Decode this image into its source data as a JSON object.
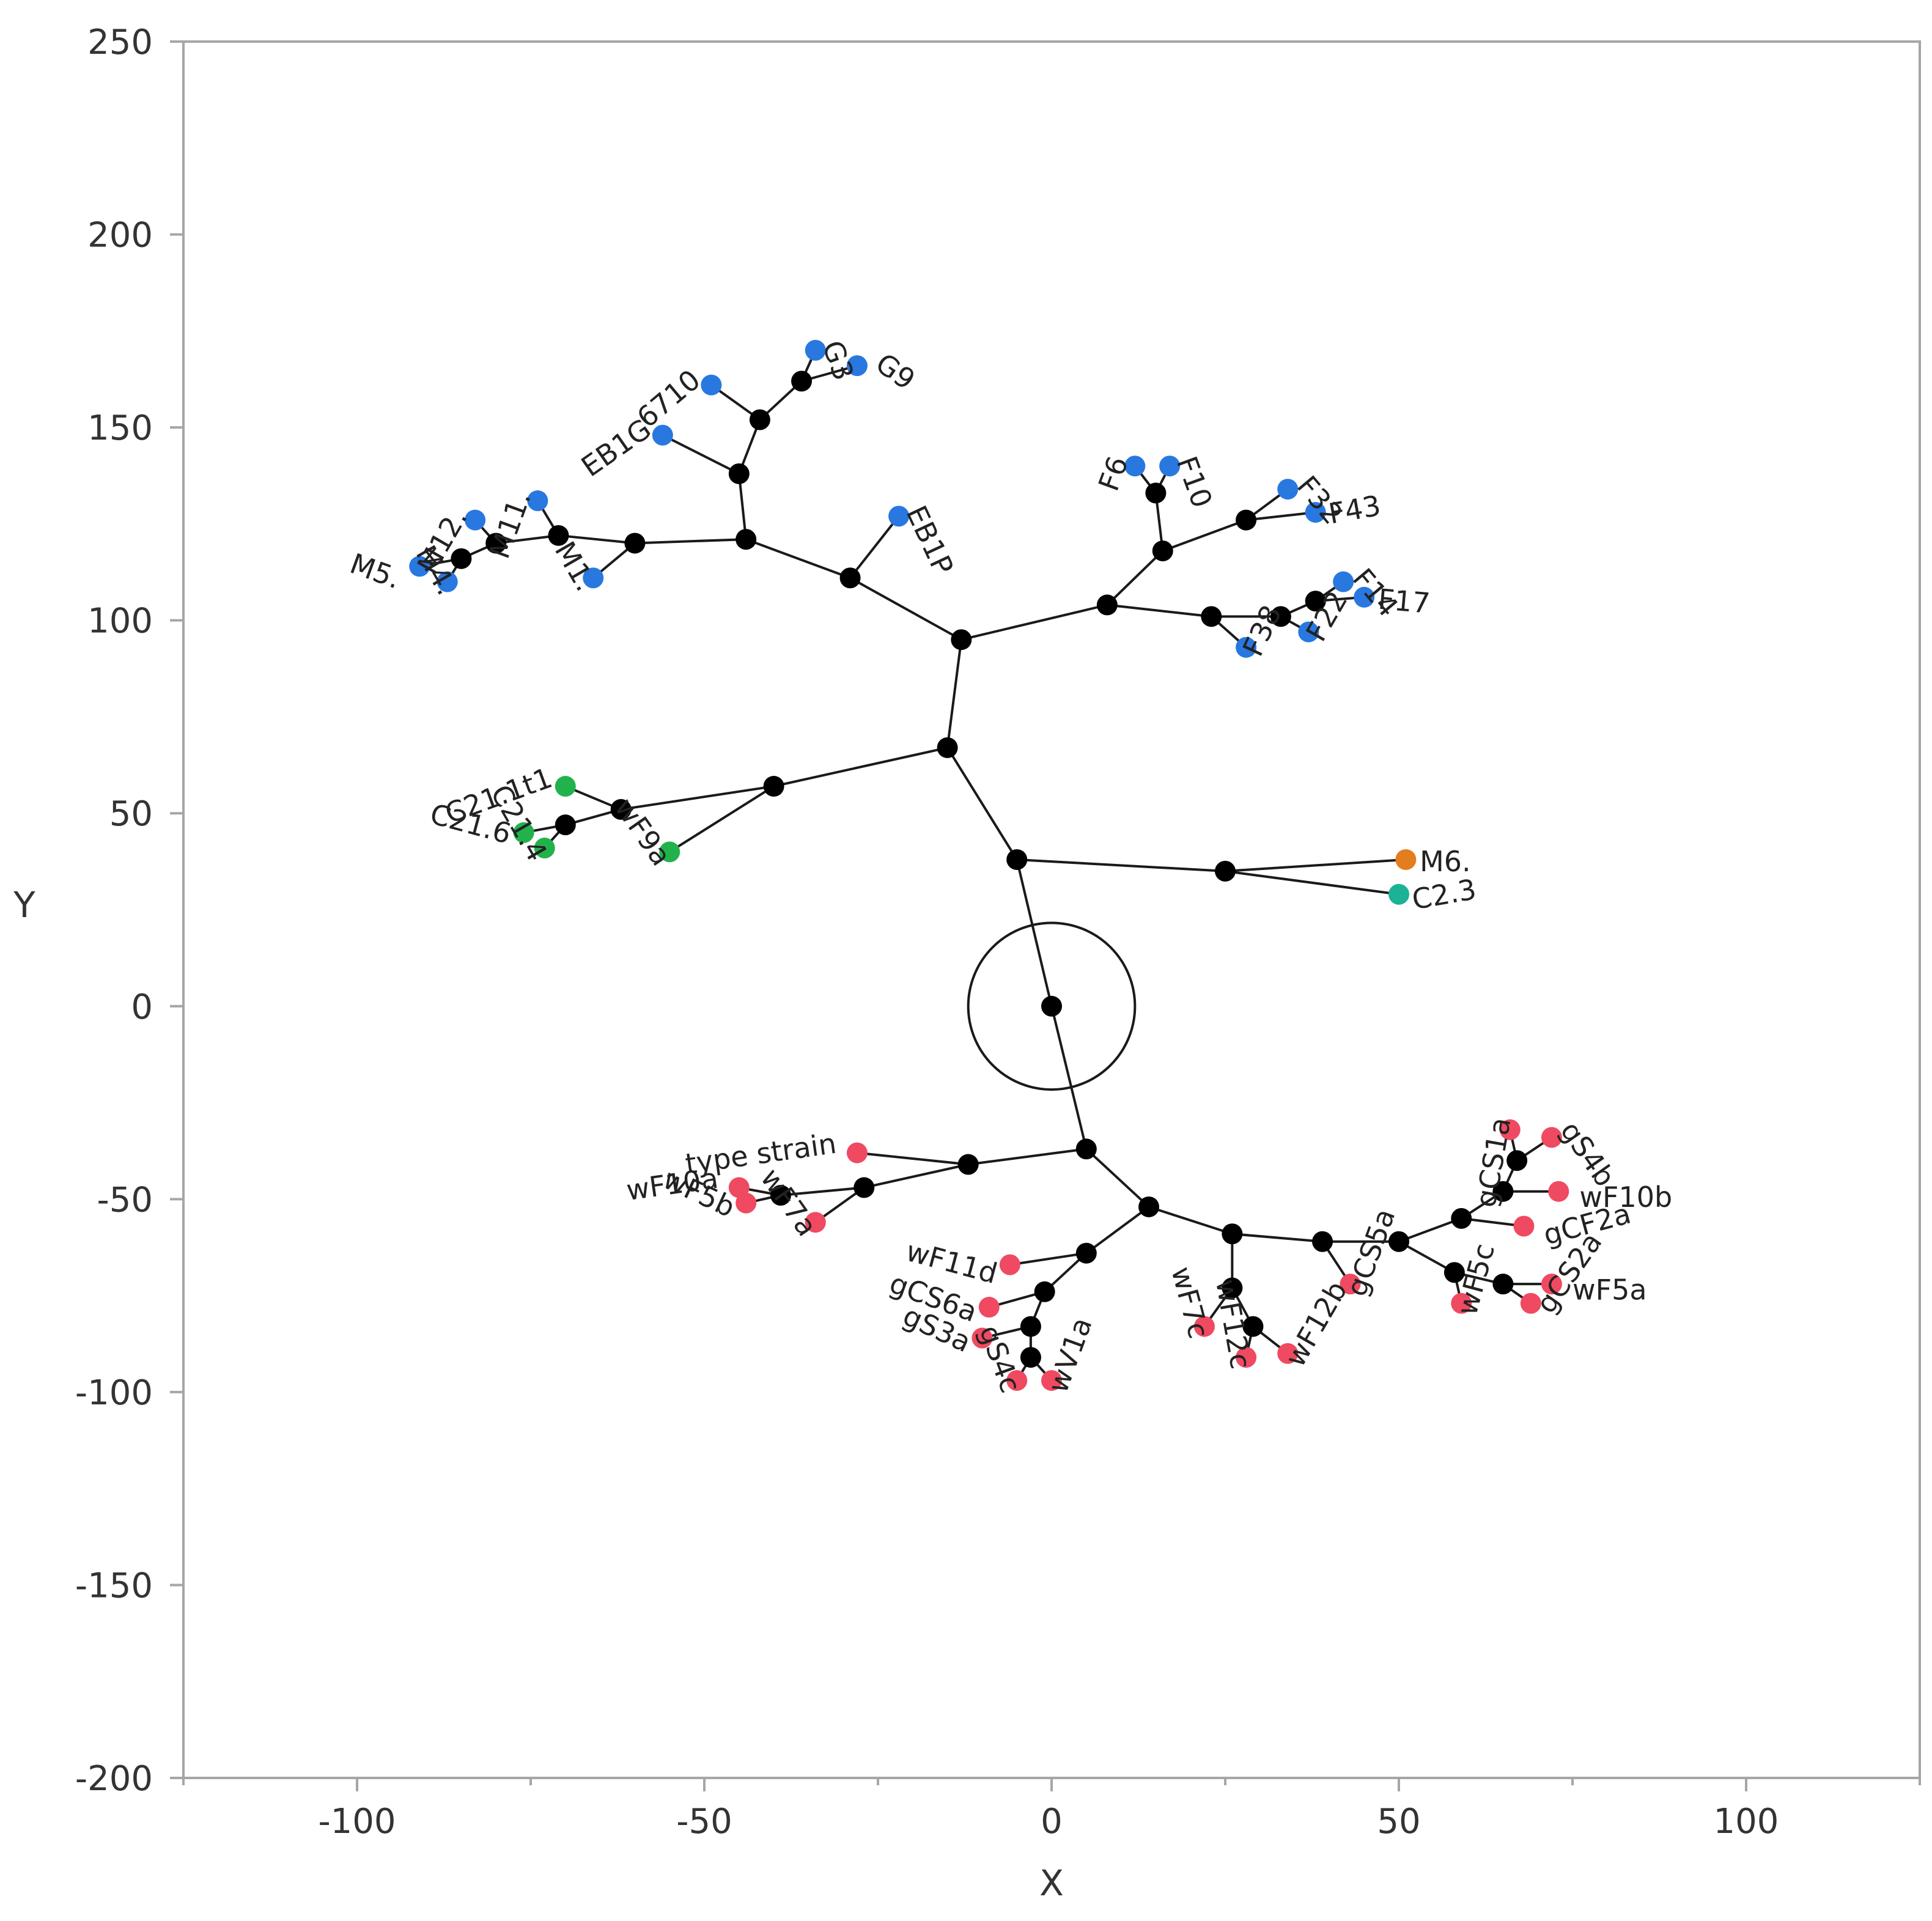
{
  "chart_data": {
    "type": "scatter",
    "title": "",
    "xlabel": "X",
    "ylabel": "Y",
    "xlim": [
      -125,
      125
    ],
    "ylim": [
      -200,
      250
    ],
    "xticks": [
      -100,
      -50,
      0,
      50,
      100
    ],
    "yticks": [
      -200,
      -150,
      -100,
      -50,
      0,
      50,
      100,
      150,
      200,
      250
    ],
    "xtick_labels": [
      "-100",
      "-50",
      "0",
      "50",
      "100"
    ],
    "ytick_labels": [
      "-200",
      "-150",
      "-100",
      "-50",
      "0",
      "50",
      "100",
      "150",
      "200",
      "250"
    ],
    "grid": false,
    "legend": "none",
    "root_marker": {
      "x": 0,
      "y": 0,
      "radius": 12
    },
    "colors": {
      "internal": "#000000",
      "blue": "#2878e0",
      "green": "#22b24c",
      "orange": "#e37d1e",
      "teal": "#1bb296",
      "red": "#ef4a61",
      "edge": "#1a1a1a",
      "axis": "#a6a6a6"
    },
    "nodes": [
      {
        "id": "n0",
        "x": 0,
        "y": 0,
        "color": "internal"
      },
      {
        "id": "n1",
        "x": -5,
        "y": 38,
        "color": "internal"
      },
      {
        "id": "n2",
        "x": -15,
        "y": 67,
        "color": "internal"
      },
      {
        "id": "n3",
        "x": -13,
        "y": 95,
        "color": "internal"
      },
      {
        "id": "n4",
        "x": -29,
        "y": 111,
        "color": "internal"
      },
      {
        "id": "n5",
        "x": -44,
        "y": 121,
        "color": "internal"
      },
      {
        "id": "n6",
        "x": -60,
        "y": 120,
        "color": "internal"
      },
      {
        "id": "n7",
        "x": -71,
        "y": 122,
        "color": "internal"
      },
      {
        "id": "n8",
        "x": -80,
        "y": 120,
        "color": "internal"
      },
      {
        "id": "n9",
        "x": -85,
        "y": 116,
        "color": "internal"
      },
      {
        "id": "n10",
        "x": -45,
        "y": 138,
        "color": "internal"
      },
      {
        "id": "n11",
        "x": -42,
        "y": 152,
        "color": "internal"
      },
      {
        "id": "n12",
        "x": -36,
        "y": 162,
        "color": "internal"
      },
      {
        "id": "n13",
        "x": 8,
        "y": 104,
        "color": "internal"
      },
      {
        "id": "n14",
        "x": 16,
        "y": 118,
        "color": "internal"
      },
      {
        "id": "n15",
        "x": 15,
        "y": 133,
        "color": "internal"
      },
      {
        "id": "n16",
        "x": 28,
        "y": 126,
        "color": "internal"
      },
      {
        "id": "n17",
        "x": 23,
        "y": 101,
        "color": "internal"
      },
      {
        "id": "n18",
        "x": 33,
        "y": 101,
        "color": "internal"
      },
      {
        "id": "n19",
        "x": 38,
        "y": 105,
        "color": "internal"
      },
      {
        "id": "n20",
        "x": -40,
        "y": 57,
        "color": "internal"
      },
      {
        "id": "n21",
        "x": -62,
        "y": 51,
        "color": "internal"
      },
      {
        "id": "n22",
        "x": -70,
        "y": 47,
        "color": "internal"
      },
      {
        "id": "n23",
        "x": 25,
        "y": 35,
        "color": "internal"
      },
      {
        "id": "n24",
        "x": 5,
        "y": -37,
        "color": "internal"
      },
      {
        "id": "n25",
        "x": -12,
        "y": -41,
        "color": "internal"
      },
      {
        "id": "n26",
        "x": -27,
        "y": -47,
        "color": "internal"
      },
      {
        "id": "n27",
        "x": -39,
        "y": -49,
        "color": "internal"
      },
      {
        "id": "n28",
        "x": 14,
        "y": -52,
        "color": "internal"
      },
      {
        "id": "n29",
        "x": 5,
        "y": -64,
        "color": "internal"
      },
      {
        "id": "n30",
        "x": -1,
        "y": -74,
        "color": "internal"
      },
      {
        "id": "n31",
        "x": -3,
        "y": -83,
        "color": "internal"
      },
      {
        "id": "n32",
        "x": -3,
        "y": -91,
        "color": "internal"
      },
      {
        "id": "n33",
        "x": 26,
        "y": -59,
        "color": "internal"
      },
      {
        "id": "n34",
        "x": 26,
        "y": -73,
        "color": "internal"
      },
      {
        "id": "n35",
        "x": 29,
        "y": -83,
        "color": "internal"
      },
      {
        "id": "n36",
        "x": 39,
        "y": -61,
        "color": "internal"
      },
      {
        "id": "n37",
        "x": 50,
        "y": -61,
        "color": "internal"
      },
      {
        "id": "n38",
        "x": 59,
        "y": -55,
        "color": "internal"
      },
      {
        "id": "n39",
        "x": 65,
        "y": -48,
        "color": "internal"
      },
      {
        "id": "n40",
        "x": 67,
        "y": -40,
        "color": "internal"
      },
      {
        "id": "n41",
        "x": 58,
        "y": -69,
        "color": "internal"
      },
      {
        "id": "n42",
        "x": 65,
        "y": -72,
        "color": "internal"
      },
      {
        "id": "M5",
        "x": -91,
        "y": 114,
        "color": "blue",
        "label": "M5.",
        "lx": -94,
        "ly": 110,
        "angle": -20,
        "anchor": "end"
      },
      {
        "id": "M4",
        "x": -87,
        "y": 110,
        "color": "blue",
        "label": "M4.",
        "lx": -87,
        "ly": 107,
        "angle": -60,
        "anchor": "end"
      },
      {
        "id": "M12",
        "x": -83,
        "y": 126,
        "color": "blue",
        "label": "M12.",
        "lx": -85,
        "ly": 128,
        "angle": 60,
        "anchor": "end"
      },
      {
        "id": "M11",
        "x": -74,
        "y": 131,
        "color": "blue",
        "label": "M11.",
        "lx": -76,
        "ly": 133,
        "angle": 70,
        "anchor": "end"
      },
      {
        "id": "M1",
        "x": -66,
        "y": 111,
        "color": "blue",
        "label": "M1.",
        "lx": -67,
        "ly": 108,
        "angle": -60,
        "anchor": "end"
      },
      {
        "id": "EB1G",
        "x": -56,
        "y": 148,
        "color": "blue",
        "label": "EB1G",
        "lx": -58,
        "ly": 150,
        "angle": 35,
        "anchor": "end"
      },
      {
        "id": "6710",
        "x": -49,
        "y": 161,
        "color": "blue",
        "label": "6710",
        "lx": -51,
        "ly": 163,
        "angle": 40,
        "anchor": "end"
      },
      {
        "id": "G3",
        "x": -34,
        "y": 170,
        "color": "blue",
        "label": "G3",
        "lx": -32,
        "ly": 172,
        "angle": -70,
        "anchor": "start"
      },
      {
        "id": "G9",
        "x": -28,
        "y": 166,
        "color": "blue",
        "label": "G9",
        "lx": -25,
        "ly": 167,
        "angle": -35,
        "anchor": "start"
      },
      {
        "id": "EB1P",
        "x": -22,
        "y": 127,
        "color": "blue",
        "label": "EB1P",
        "lx": -20,
        "ly": 129,
        "angle": -65,
        "anchor": "start"
      },
      {
        "id": "F6",
        "x": 12,
        "y": 140,
        "color": "blue",
        "label": "F6",
        "lx": 10,
        "ly": 142,
        "angle": 70,
        "anchor": "end"
      },
      {
        "id": "F10",
        "x": 17,
        "y": 140,
        "color": "blue",
        "label": "F10",
        "lx": 19,
        "ly": 142,
        "angle": -70,
        "anchor": "start"
      },
      {
        "id": "F32",
        "x": 34,
        "y": 134,
        "color": "blue",
        "label": "F32",
        "lx": 36,
        "ly": 136,
        "angle": -50,
        "anchor": "start"
      },
      {
        "id": "F43",
        "x": 38,
        "y": 128,
        "color": "blue",
        "label": "F43",
        "lx": 40,
        "ly": 127,
        "angle": 10,
        "anchor": "start"
      },
      {
        "id": "F14",
        "x": 42,
        "y": 110,
        "color": "blue",
        "label": "F14",
        "lx": 44,
        "ly": 112,
        "angle": -50,
        "anchor": "start"
      },
      {
        "id": "F17",
        "x": 45,
        "y": 106,
        "color": "blue",
        "label": "F17",
        "lx": 47,
        "ly": 105,
        "angle": -5,
        "anchor": "start"
      },
      {
        "id": "F22",
        "x": 37,
        "y": 97,
        "color": "blue",
        "label": "F22",
        "lx": 38,
        "ly": 95,
        "angle": 60,
        "anchor": "start"
      },
      {
        "id": "F38",
        "x": 28,
        "y": 93,
        "color": "blue",
        "label": "F38",
        "lx": 29,
        "ly": 91,
        "angle": 65,
        "anchor": "start"
      },
      {
        "id": "C21.1t1",
        "x": -70,
        "y": 57,
        "color": "green",
        "label": "C21.1t1",
        "lx": -72,
        "ly": 59,
        "angle": 20,
        "anchor": "end"
      },
      {
        "id": "C21.6",
        "x": -76,
        "y": 45,
        "color": "green",
        "label": "C21.6",
        "lx": -78,
        "ly": 44,
        "angle": -15,
        "anchor": "end"
      },
      {
        "id": "C21.4",
        "x": -73,
        "y": 41,
        "color": "green",
        "label": "C21.4",
        "lx": -74,
        "ly": 38,
        "angle": -60,
        "anchor": "end"
      },
      {
        "id": "wF9a",
        "x": -55,
        "y": 40,
        "color": "green",
        "label": "wF9a",
        "lx": -56,
        "ly": 37,
        "angle": -55,
        "anchor": "end"
      },
      {
        "id": "M6",
        "x": 51,
        "y": 38,
        "color": "orange",
        "label": "M6.",
        "lx": 53,
        "ly": 37,
        "angle": 0,
        "anchor": "start"
      },
      {
        "id": "C2.3",
        "x": 50,
        "y": 29,
        "color": "teal",
        "label": "C2.3",
        "lx": 52,
        "ly": 27,
        "angle": 10,
        "anchor": "start"
      },
      {
        "id": "type strain",
        "x": -28,
        "y": -38,
        "color": "red",
        "label": "type strain",
        "lx": -31,
        "ly": -36,
        "angle": 8,
        "anchor": "end"
      },
      {
        "id": "wF10a",
        "x": -45,
        "y": -47,
        "color": "red",
        "label": "wF10a",
        "lx": -48,
        "ly": -45,
        "angle": 8,
        "anchor": "end"
      },
      {
        "id": "wF5b",
        "x": -44,
        "y": -51,
        "color": "red",
        "label": "wF5b",
        "lx": -46,
        "ly": -53,
        "angle": -25,
        "anchor": "end"
      },
      {
        "id": "wF7a",
        "x": -34,
        "y": -56,
        "color": "red",
        "label": "wF7a",
        "lx": -35,
        "ly": -59,
        "angle": -55,
        "anchor": "end"
      },
      {
        "id": "wF11d",
        "x": -6,
        "y": -67,
        "color": "red",
        "label": "wF11d",
        "lx": -8,
        "ly": -70,
        "angle": -15,
        "anchor": "end"
      },
      {
        "id": "gCS6a",
        "x": -9,
        "y": -78,
        "color": "red",
        "label": "gCS6a",
        "lx": -11,
        "ly": -80,
        "angle": -20,
        "anchor": "end"
      },
      {
        "id": "gS3a",
        "x": -10,
        "y": -86,
        "color": "red",
        "label": "gS3a",
        "lx": -12,
        "ly": -88,
        "angle": -25,
        "anchor": "end"
      },
      {
        "id": "gS4c",
        "x": -5,
        "y": -97,
        "color": "red",
        "label": "gS4c",
        "lx": -6,
        "ly": -100,
        "angle": -70,
        "anchor": "end"
      },
      {
        "id": "wV1a",
        "x": 0,
        "y": -97,
        "color": "red",
        "label": "wV1a",
        "lx": 1,
        "ly": -100,
        "angle": 70,
        "anchor": "start"
      },
      {
        "id": "wF7c",
        "x": 22,
        "y": -83,
        "color": "red",
        "label": "wF7c",
        "lx": 21,
        "ly": -86,
        "angle": -75,
        "anchor": "end"
      },
      {
        "id": "wF12c",
        "x": 28,
        "y": -91,
        "color": "red",
        "label": "wF12c",
        "lx": 27,
        "ly": -94,
        "angle": -80,
        "anchor": "end"
      },
      {
        "id": "wF12b",
        "x": 34,
        "y": -90,
        "color": "red",
        "label": "wF12b",
        "lx": 35,
        "ly": -93,
        "angle": 60,
        "anchor": "start"
      },
      {
        "id": "gCS5a",
        "x": 43,
        "y": -72,
        "color": "red",
        "label": "gCS5a",
        "lx": 44,
        "ly": -75,
        "angle": 70,
        "anchor": "start"
      },
      {
        "id": "wF5c",
        "x": 59,
        "y": -77,
        "color": "red",
        "label": "wF5c",
        "lx": 60,
        "ly": -80,
        "angle": 75,
        "anchor": "start"
      },
      {
        "id": "gCS2a",
        "x": 69,
        "y": -77,
        "color": "red",
        "label": "gCS2a",
        "lx": 71,
        "ly": -79,
        "angle": 55,
        "anchor": "start"
      },
      {
        "id": "wF5a",
        "x": 72,
        "y": -72,
        "color": "red",
        "label": "wF5a",
        "lx": 75,
        "ly": -74,
        "angle": 0,
        "anchor": "start"
      },
      {
        "id": "gCF2a",
        "x": 68,
        "y": -57,
        "color": "red",
        "label": "gCF2a",
        "lx": 71,
        "ly": -60,
        "angle": 15,
        "anchor": "start"
      },
      {
        "id": "wF10b",
        "x": 73,
        "y": -48,
        "color": "red",
        "label": "wF10b",
        "lx": 76,
        "ly": -50,
        "angle": 0,
        "anchor": "start"
      },
      {
        "id": "gCS1a",
        "x": 66,
        "y": -32,
        "color": "red",
        "label": "gCS1a",
        "lx": 65,
        "ly": -29,
        "angle": 80,
        "anchor": "end"
      },
      {
        "id": "gS4b",
        "x": 72,
        "y": -34,
        "color": "red",
        "label": "gS4b",
        "lx": 74,
        "ly": -31,
        "angle": -55,
        "anchor": "start"
      }
    ],
    "edges": [
      [
        "n0",
        "n1"
      ],
      [
        "n0",
        "n24"
      ],
      [
        "n1",
        "n2"
      ],
      [
        "n1",
        "n23"
      ],
      [
        "n2",
        "n3"
      ],
      [
        "n2",
        "n20"
      ],
      [
        "n3",
        "n4"
      ],
      [
        "n3",
        "n13"
      ],
      [
        "n4",
        "n5"
      ],
      [
        "n4",
        "EB1P"
      ],
      [
        "n5",
        "n6"
      ],
      [
        "n5",
        "n10"
      ],
      [
        "n6",
        "n7"
      ],
      [
        "n6",
        "M1"
      ],
      [
        "n7",
        "n8"
      ],
      [
        "n7",
        "M11"
      ],
      [
        "n8",
        "n9"
      ],
      [
        "n8",
        "M12"
      ],
      [
        "n9",
        "M5"
      ],
      [
        "n9",
        "M4"
      ],
      [
        "n10",
        "n11"
      ],
      [
        "n10",
        "EB1G"
      ],
      [
        "n11",
        "n12"
      ],
      [
        "n11",
        "6710"
      ],
      [
        "n12",
        "G3"
      ],
      [
        "n12",
        "G9"
      ],
      [
        "n13",
        "n14"
      ],
      [
        "n13",
        "n17"
      ],
      [
        "n14",
        "n15"
      ],
      [
        "n14",
        "n16"
      ],
      [
        "n15",
        "F6"
      ],
      [
        "n15",
        "F10"
      ],
      [
        "n16",
        "F32"
      ],
      [
        "n16",
        "F43"
      ],
      [
        "n17",
        "F38"
      ],
      [
        "n17",
        "n18"
      ],
      [
        "n18",
        "F22"
      ],
      [
        "n18",
        "n19"
      ],
      [
        "n19",
        "F14"
      ],
      [
        "n19",
        "F17"
      ],
      [
        "n20",
        "n21"
      ],
      [
        "n20",
        "wF9a"
      ],
      [
        "n21",
        "C21.1t1"
      ],
      [
        "n21",
        "n22"
      ],
      [
        "n22",
        "C21.6"
      ],
      [
        "n22",
        "C21.4"
      ],
      [
        "n23",
        "M6"
      ],
      [
        "n23",
        "C2.3"
      ],
      [
        "n24",
        "n25"
      ],
      [
        "n24",
        "n28"
      ],
      [
        "n25",
        "type strain"
      ],
      [
        "n25",
        "n26"
      ],
      [
        "n26",
        "n27"
      ],
      [
        "n26",
        "wF7a"
      ],
      [
        "n27",
        "wF10a"
      ],
      [
        "n27",
        "wF5b"
      ],
      [
        "n28",
        "n29"
      ],
      [
        "n28",
        "n33"
      ],
      [
        "n29",
        "wF11d"
      ],
      [
        "n29",
        "n30"
      ],
      [
        "n30",
        "gCS6a"
      ],
      [
        "n30",
        "n31"
      ],
      [
        "n31",
        "gS3a"
      ],
      [
        "n31",
        "n32"
      ],
      [
        "n32",
        "gS4c"
      ],
      [
        "n32",
        "wV1a"
      ],
      [
        "n33",
        "n34"
      ],
      [
        "n33",
        "n36"
      ],
      [
        "n34",
        "wF7c"
      ],
      [
        "n34",
        "n35"
      ],
      [
        "n35",
        "wF12c"
      ],
      [
        "n35",
        "wF12b"
      ],
      [
        "n36",
        "gCS5a"
      ],
      [
        "n36",
        "n37"
      ],
      [
        "n37",
        "n38"
      ],
      [
        "n37",
        "n41"
      ],
      [
        "n38",
        "gCF2a"
      ],
      [
        "n38",
        "n39"
      ],
      [
        "n39",
        "wF10b"
      ],
      [
        "n39",
        "n40"
      ],
      [
        "n40",
        "gCS1a"
      ],
      [
        "n40",
        "gS4b"
      ],
      [
        "n41",
        "wF5c"
      ],
      [
        "n41",
        "n42"
      ],
      [
        "n42",
        "gCS2a"
      ],
      [
        "n42",
        "wF5a"
      ]
    ]
  }
}
